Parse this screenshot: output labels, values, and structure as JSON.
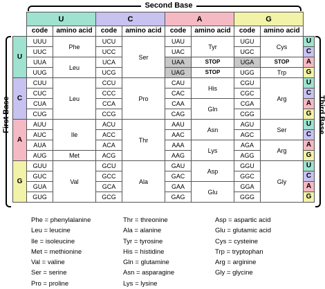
{
  "labels": {
    "second_base": "Second Base",
    "first_base": "First Base",
    "third_base": "Third Base",
    "code": "code",
    "amino_acid": "amino acid"
  },
  "bases": [
    "U",
    "C",
    "A",
    "G"
  ],
  "colors": {
    "U": "#9ee2cf",
    "C": "#c7c2ef",
    "A": "#f5b9c3",
    "G": "#f2f2a8",
    "stop": "#c8c8c8"
  },
  "blocks": [
    {
      "first": "U",
      "cols": [
        {
          "codons": [
            "UUU",
            "UUC",
            "UUA",
            "UUG"
          ],
          "groups": [
            {
              "span": 2,
              "aa": "Phe"
            },
            {
              "span": 2,
              "aa": "Leu"
            }
          ]
        },
        {
          "codons": [
            "UCU",
            "UCC",
            "UCA",
            "UCG"
          ],
          "groups": [
            {
              "span": 4,
              "aa": "Ser"
            }
          ]
        },
        {
          "codons": [
            "UAU",
            "UAC",
            "UAA",
            "UAG"
          ],
          "groups": [
            {
              "span": 2,
              "aa": "Tyr"
            },
            {
              "span": 1,
              "aa": "STOP",
              "stop": true
            },
            {
              "span": 1,
              "aa": "STOP",
              "stop": true
            }
          ],
          "stopRows": [
            2,
            3
          ]
        },
        {
          "codons": [
            "UGU",
            "UGC",
            "UGA",
            "UGG"
          ],
          "groups": [
            {
              "span": 2,
              "aa": "Cys"
            },
            {
              "span": 1,
              "aa": "STOP",
              "stop": true
            },
            {
              "span": 1,
              "aa": "Trp"
            }
          ],
          "stopRows": [
            2
          ]
        }
      ]
    },
    {
      "first": "C",
      "cols": [
        {
          "codons": [
            "CUU",
            "CUC",
            "CUA",
            "CUG"
          ],
          "groups": [
            {
              "span": 4,
              "aa": "Leu"
            }
          ]
        },
        {
          "codons": [
            "CCU",
            "CCC",
            "CCA",
            "CCG"
          ],
          "groups": [
            {
              "span": 4,
              "aa": "Pro"
            }
          ]
        },
        {
          "codons": [
            "CAU",
            "CAC",
            "CAA",
            "CAG"
          ],
          "groups": [
            {
              "span": 2,
              "aa": "His"
            },
            {
              "span": 2,
              "aa": "Gln"
            }
          ]
        },
        {
          "codons": [
            "CGU",
            "CGC",
            "CGA",
            "CGG"
          ],
          "groups": [
            {
              "span": 4,
              "aa": "Arg"
            }
          ]
        }
      ]
    },
    {
      "first": "A",
      "cols": [
        {
          "codons": [
            "AUU",
            "AUC",
            "AUA",
            "AUG"
          ],
          "groups": [
            {
              "span": 3,
              "aa": "Ile"
            },
            {
              "span": 1,
              "aa": "Met"
            }
          ]
        },
        {
          "codons": [
            "ACU",
            "ACC",
            "ACA",
            "ACG"
          ],
          "groups": [
            {
              "span": 4,
              "aa": "Thr"
            }
          ]
        },
        {
          "codons": [
            "AAU",
            "AAC",
            "AAA",
            "AAG"
          ],
          "groups": [
            {
              "span": 2,
              "aa": "Asn"
            },
            {
              "span": 2,
              "aa": "Lys"
            }
          ]
        },
        {
          "codons": [
            "AGU",
            "AGC",
            "AGA",
            "AGG"
          ],
          "groups": [
            {
              "span": 2,
              "aa": "Ser"
            },
            {
              "span": 2,
              "aa": "Arg"
            }
          ]
        }
      ]
    },
    {
      "first": "G",
      "cols": [
        {
          "codons": [
            "GUU",
            "GUC",
            "GUA",
            "GUG"
          ],
          "groups": [
            {
              "span": 4,
              "aa": "Val"
            }
          ]
        },
        {
          "codons": [
            "GCU",
            "GCC",
            "GCA",
            "GCG"
          ],
          "groups": [
            {
              "span": 4,
              "aa": "Ala"
            }
          ]
        },
        {
          "codons": [
            "GAU",
            "GAC",
            "GAA",
            "GAG"
          ],
          "groups": [
            {
              "span": 2,
              "aa": "Asp"
            },
            {
              "span": 2,
              "aa": "Glu"
            }
          ]
        },
        {
          "codons": [
            "GGU",
            "GGC",
            "GGA",
            "GGG"
          ],
          "groups": [
            {
              "span": 4,
              "aa": "Gly"
            }
          ]
        }
      ]
    }
  ],
  "legend": [
    [
      "Phe = phenylalanine",
      "Leu = leucine",
      "Ile = isoleucine",
      "Met = methionine",
      "Val = valine",
      "Ser = serine",
      "Pro = proline"
    ],
    [
      "Thr = threonine",
      "Ala = alanine",
      "Tyr = tyrosine",
      "His = histidine",
      "Gln = glutamine",
      "Asn = asparagine",
      "Lys = lysine"
    ],
    [
      "Asp = aspartic acid",
      "Glu = glutamic acid",
      "Cys = cysteine",
      "Trp = tryptophan",
      "Arg = arginine",
      "Gly = glycine"
    ]
  ]
}
